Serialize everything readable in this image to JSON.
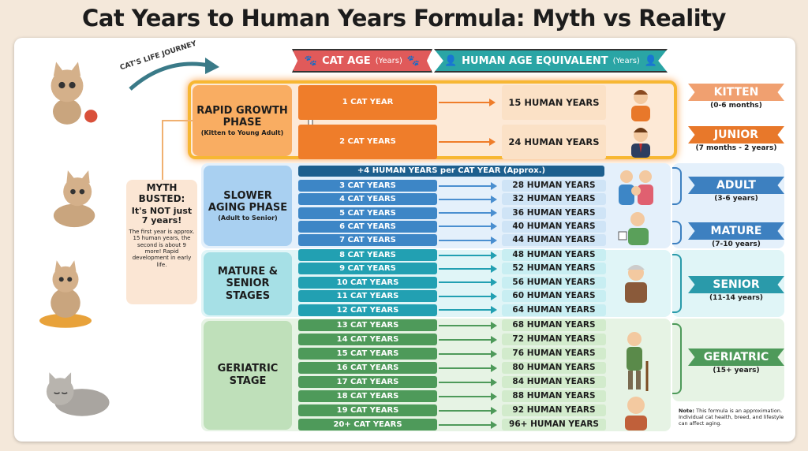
{
  "title": "Cat Years to Human Years Formula: Myth vs Reality",
  "journey_label": "CAT'S LIFE JOURNEY",
  "headers": {
    "cat_age": "CAT AGE",
    "cat_age_unit": "(Years)",
    "human_age": "HUMAN AGE EQUIVALENT",
    "human_age_unit": "(Years)"
  },
  "myth": {
    "title": "MYTH BUSTED:",
    "subtitle": "It's NOT just 7 years!",
    "body": "The first year is approx. 15 human years, the second is about 9 more! Rapid development in early life."
  },
  "phases": [
    {
      "title": "RAPID GROWTH PHASE",
      "sub": "(Kitten to Young Adult)",
      "color": "#f08a30"
    },
    {
      "title": "SLOWER AGING PHASE",
      "sub": "(Adult to Senior)",
      "color": "#3d86c6"
    },
    {
      "title": "MATURE & SENIOR STAGES",
      "sub": "",
      "color": "#2aa0b0"
    },
    {
      "title": "GERIATRIC STAGE",
      "sub": "",
      "color": "#4e9a5a"
    }
  ],
  "rate_note": "+4 HUMAN YEARS per CAT YEAR (Approx.)",
  "rows": [
    {
      "cat": "1 CAT YEAR",
      "human": "15 HUMAN YEARS"
    },
    {
      "cat": "2 CAT YEARS",
      "human": "24 HUMAN YEARS"
    },
    {
      "cat": "3 CAT YEARS",
      "human": "28 HUMAN YEARS"
    },
    {
      "cat": "4 CAT YEARS",
      "human": "32 HUMAN YEARS"
    },
    {
      "cat": "5 CAT YEARS",
      "human": "36 HUMAN YEARS"
    },
    {
      "cat": "6 CAT YEARS",
      "human": "40 HUMAN YEARS"
    },
    {
      "cat": "7 CAT YEARS",
      "human": "44 HUMAN YEARS"
    },
    {
      "cat": "8 CAT YEARS",
      "human": "48 HUMAN YEARS"
    },
    {
      "cat": "9 CAT YEARS",
      "human": "52 HUMAN YEARS"
    },
    {
      "cat": "10 CAT YEARS",
      "human": "56 HUMAN YEARS"
    },
    {
      "cat": "11 CAT YEARS",
      "human": "60 HUMAN YEARS"
    },
    {
      "cat": "12 CAT YEARS",
      "human": "64 HUMAN YEARS"
    },
    {
      "cat": "13 CAT YEARS",
      "human": "68 HUMAN YEARS"
    },
    {
      "cat": "14 CAT YEARS",
      "human": "72 HUMAN YEARS"
    },
    {
      "cat": "15 CAT YEARS",
      "human": "76 HUMAN YEARS"
    },
    {
      "cat": "16 CAT YEARS",
      "human": "80 HUMAN YEARS"
    },
    {
      "cat": "17 CAT YEARS",
      "human": "84 HUMAN YEARS"
    },
    {
      "cat": "18 CAT YEARS",
      "human": "88 HUMAN YEARS"
    },
    {
      "cat": "19 CAT YEARS",
      "human": "92 HUMAN YEARS"
    },
    {
      "cat": "20+ CAT YEARS",
      "human": "96+ HUMAN YEARS"
    }
  ],
  "stages": [
    {
      "name": "KITTEN",
      "range": "(0-6 months)",
      "color": "#f0a070"
    },
    {
      "name": "JUNIOR",
      "range": "(7 months - 2 years)",
      "color": "#e8782a"
    },
    {
      "name": "ADULT",
      "range": "(3-6 years)",
      "color": "#3d80c0"
    },
    {
      "name": "MATURE",
      "range": "(7-10 years)",
      "color": "#3d80c0"
    },
    {
      "name": "SENIOR",
      "range": "(11-14 years)",
      "color": "#2a9aaa"
    },
    {
      "name": "GERIATRIC",
      "range": "(15+ years)",
      "color": "#4e9a5a"
    }
  ],
  "note": {
    "label": "Note:",
    "text": " This formula is an approximation. Individual cat health, breed, and lifestyle can affect aging."
  }
}
